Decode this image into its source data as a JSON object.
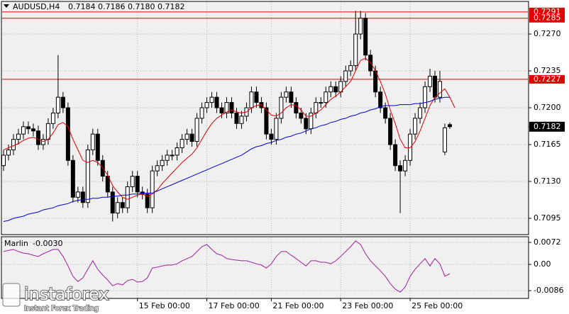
{
  "chart_data": {
    "type": "candlestick",
    "symbol": "AUDUSD,H4",
    "header_values": [
      "0.7184",
      "0.7186",
      "0.7180",
      "0.7182"
    ],
    "categories": [
      null,
      null,
      null,
      null,
      null,
      null,
      null,
      null,
      null,
      null,
      null,
      null,
      null,
      null,
      null,
      null,
      null,
      null,
      null,
      null,
      null,
      null,
      null,
      null,
      null,
      null,
      null,
      "15 Feb 00:00",
      null,
      null,
      null,
      null,
      null,
      null,
      null,
      null,
      null,
      null,
      null,
      null,
      null,
      "17 Feb 00:00",
      null,
      null,
      null,
      null,
      null,
      null,
      null,
      null,
      null,
      null,
      null,
      null,
      "21 Feb 00:00",
      null,
      null,
      null,
      null,
      null,
      null,
      null,
      null,
      null,
      null,
      null,
      null,
      null,
      "23 Feb 00:00",
      null,
      null,
      null,
      null,
      null,
      null,
      null,
      null,
      null,
      null,
      null,
      null,
      null,
      "25 Feb 00:00",
      null,
      null,
      null,
      null,
      null,
      null,
      null,
      null
    ],
    "open": [
      0.7145,
      0.7155,
      0.716,
      0.717,
      0.7175,
      0.7182,
      0.718,
      0.7178,
      0.7165,
      0.717,
      0.7185,
      0.7195,
      0.721,
      0.72,
      0.715,
      0.7115,
      0.712,
      0.711,
      0.716,
      0.7175,
      0.715,
      0.7135,
      0.712,
      0.71,
      0.711,
      0.7105,
      0.7125,
      0.7135,
      0.712,
      0.7118,
      0.7105,
      0.714,
      0.7145,
      0.715,
      0.7155,
      0.7155,
      0.7162,
      0.717,
      0.7175,
      0.7168,
      0.719,
      0.72,
      0.7205,
      0.721,
      0.72,
      0.7195,
      0.7205,
      0.7195,
      0.7185,
      0.7192,
      0.72,
      0.7215,
      0.7205,
      0.72,
      0.7175,
      0.717,
      0.719,
      0.721,
      0.7215,
      0.7205,
      0.7195,
      0.719,
      0.718,
      0.7195,
      0.7205,
      0.7205,
      0.7215,
      0.722,
      0.7215,
      0.7225,
      0.7235,
      0.724,
      0.727,
      0.7285,
      0.725,
      0.7235,
      0.7215,
      0.72,
      0.719,
      0.7165,
      0.7145,
      0.714,
      0.715,
      0.7175,
      0.719,
      0.72,
      0.722,
      0.723,
      0.721,
      0.7158,
      0.7184
    ],
    "high": [
      0.716,
      0.7165,
      0.7175,
      0.718,
      0.7187,
      0.7187,
      0.7185,
      0.7183,
      0.7175,
      0.719,
      0.72,
      0.725,
      0.7215,
      0.7205,
      0.7155,
      0.7125,
      0.7125,
      0.7165,
      0.718,
      0.718,
      0.7155,
      0.714,
      0.7125,
      0.7115,
      0.7115,
      0.713,
      0.714,
      0.714,
      0.7125,
      0.7123,
      0.7145,
      0.715,
      0.7155,
      0.716,
      0.716,
      0.7167,
      0.7175,
      0.718,
      0.718,
      0.7195,
      0.7205,
      0.721,
      0.7215,
      0.7215,
      0.7205,
      0.721,
      0.721,
      0.72,
      0.7197,
      0.7205,
      0.722,
      0.722,
      0.721,
      0.7205,
      0.718,
      0.7195,
      0.7215,
      0.722,
      0.722,
      0.721,
      0.72,
      0.7195,
      0.72,
      0.721,
      0.721,
      0.722,
      0.7225,
      0.7225,
      0.723,
      0.724,
      0.7245,
      0.7292,
      0.7292,
      0.729,
      0.7255,
      0.724,
      0.722,
      0.7205,
      0.7195,
      0.717,
      0.715,
      0.7155,
      0.718,
      0.7195,
      0.7205,
      0.7225,
      0.7237,
      0.7235,
      0.7235,
      0.7185,
      0.7186
    ],
    "low": [
      0.714,
      0.715,
      0.7155,
      0.7165,
      0.717,
      0.7175,
      0.7173,
      0.716,
      0.716,
      0.7165,
      0.718,
      0.719,
      0.7195,
      0.7145,
      0.711,
      0.711,
      0.7105,
      0.7105,
      0.7155,
      0.7145,
      0.713,
      0.7115,
      0.7092,
      0.7095,
      0.71,
      0.71,
      0.712,
      0.7115,
      0.7113,
      0.71,
      0.71,
      0.7135,
      0.714,
      0.7145,
      0.715,
      0.715,
      0.7157,
      0.7165,
      0.7163,
      0.7163,
      0.7185,
      0.7195,
      0.72,
      0.7195,
      0.719,
      0.719,
      0.719,
      0.718,
      0.718,
      0.7187,
      0.7195,
      0.72,
      0.7195,
      0.717,
      0.7165,
      0.7165,
      0.7185,
      0.7205,
      0.72,
      0.719,
      0.7185,
      0.7175,
      0.7175,
      0.719,
      0.72,
      0.72,
      0.721,
      0.721,
      0.721,
      0.722,
      0.723,
      0.7235,
      0.7265,
      0.7245,
      0.723,
      0.721,
      0.7195,
      0.7185,
      0.716,
      0.714,
      0.71,
      0.7135,
      0.7145,
      0.717,
      0.7185,
      0.7195,
      0.7215,
      0.7205,
      0.7205,
      0.7155,
      0.718
    ],
    "close": [
      0.7155,
      0.716,
      0.717,
      0.7175,
      0.7182,
      0.718,
      0.7178,
      0.7165,
      0.717,
      0.7185,
      0.7195,
      0.721,
      0.72,
      0.715,
      0.7115,
      0.712,
      0.711,
      0.716,
      0.7175,
      0.715,
      0.7135,
      0.712,
      0.71,
      0.711,
      0.7105,
      0.7125,
      0.7135,
      0.712,
      0.7118,
      0.7105,
      0.714,
      0.7145,
      0.715,
      0.7155,
      0.7155,
      0.7162,
      0.717,
      0.7175,
      0.7168,
      0.719,
      0.72,
      0.7205,
      0.721,
      0.72,
      0.7195,
      0.7205,
      0.7195,
      0.7185,
      0.7192,
      0.72,
      0.7215,
      0.7205,
      0.72,
      0.7175,
      0.717,
      0.719,
      0.721,
      0.7215,
      0.7205,
      0.7195,
      0.719,
      0.718,
      0.7195,
      0.7205,
      0.7205,
      0.7215,
      0.722,
      0.7215,
      0.7225,
      0.7235,
      0.724,
      0.727,
      0.7285,
      0.725,
      0.7235,
      0.7215,
      0.72,
      0.719,
      0.7165,
      0.7145,
      0.714,
      0.715,
      0.7175,
      0.719,
      0.72,
      0.722,
      0.723,
      0.721,
      0.7225,
      0.7181,
      0.7182
    ],
    "ylim": [
      0.70802,
      0.72929
    ],
    "yticks": [
      {
        "value": 0.727,
        "label": "0.7270"
      },
      0.7235,
      {
        "value": 0.72,
        "label": "0.7200"
      },
      0.7165,
      {
        "value": 0.713,
        "label": "0.7130"
      },
      0.7095
    ],
    "grid": true,
    "overlays": [
      {
        "color": "#e00000",
        "values": [
          0.716,
          0.7162,
          0.7164,
          0.7166,
          0.7169,
          0.7171,
          0.7172,
          0.717,
          0.7168,
          0.717,
          0.7176,
          0.7184,
          0.7186,
          0.7182,
          0.717,
          0.716,
          0.715,
          0.7148,
          0.715,
          0.7148,
          0.7143,
          0.7136,
          0.7126,
          0.712,
          0.7115,
          0.7113,
          0.7115,
          0.7117,
          0.7118,
          0.7116,
          0.7118,
          0.7122,
          0.7128,
          0.7133,
          0.7138,
          0.7143,
          0.7148,
          0.7152,
          0.7156,
          0.7162,
          0.717,
          0.7178,
          0.7185,
          0.719,
          0.7193,
          0.7196,
          0.7198,
          0.7196,
          0.7195,
          0.7196,
          0.72,
          0.7202,
          0.7203,
          0.7198,
          0.7193,
          0.7192,
          0.7195,
          0.72,
          0.7203,
          0.7202,
          0.7198,
          0.7192,
          0.7192,
          0.7195,
          0.7198,
          0.7203,
          0.7208,
          0.7211,
          0.7215,
          0.722,
          0.7225,
          0.7235,
          0.7245,
          0.7247,
          0.7243,
          0.7235,
          0.7225,
          0.7213,
          0.7198,
          0.7185,
          0.717,
          0.7162,
          0.7162,
          0.7168,
          0.7178,
          0.719,
          0.7202,
          0.721,
          0.7214,
          0.7218,
          0.721,
          0.72
        ]
      },
      {
        "color": "#0000cc",
        "values": [
          0.7092,
          0.7093,
          0.7095,
          0.7096,
          0.7097,
          0.7099,
          0.71,
          0.7101,
          0.7103,
          0.7104,
          0.7105,
          0.7107,
          0.7108,
          0.7109,
          0.7111,
          0.7112,
          0.7113,
          0.7113,
          0.7114,
          0.7114,
          0.7115,
          0.7115,
          0.7116,
          0.7116,
          0.7117,
          0.7117,
          0.7118,
          0.7118,
          0.7119,
          0.7119,
          0.7119,
          0.7121,
          0.7123,
          0.7125,
          0.7127,
          0.7129,
          0.7131,
          0.7133,
          0.7135,
          0.7137,
          0.7139,
          0.7141,
          0.7143,
          0.7145,
          0.7147,
          0.7149,
          0.7151,
          0.7153,
          0.7155,
          0.7158,
          0.7161,
          0.7163,
          0.7164,
          0.7166,
          0.7167,
          0.7169,
          0.717,
          0.7172,
          0.7173,
          0.7175,
          0.7176,
          0.7178,
          0.718,
          0.7181,
          0.7183,
          0.7184,
          0.7186,
          0.7187,
          0.7189,
          0.719,
          0.7192,
          0.7193,
          0.7195,
          0.7196,
          0.7198,
          0.7199,
          0.7201,
          0.7202,
          0.7202,
          0.7202,
          0.7203,
          0.7203,
          0.7203,
          0.7204,
          0.7204,
          0.7205,
          0.7206,
          0.7208,
          0.7209,
          0.721,
          0.721
        ]
      }
    ],
    "levels": {
      "color": "#e00000",
      "values": [
        0.7291,
        0.7285,
        0.7227
      ]
    },
    "indicator": {
      "name": "Marlin",
      "value_label": "-0.0030",
      "color": "#a020a0",
      "ylim": [
        -0.0109,
        0.00906
      ],
      "yticks": [
        0.0072,
        {
          "value": 0,
          "label": "0.00"
        },
        -0.0086
      ],
      "values": [
        0.0042,
        0.0046,
        0.0049,
        0.0042,
        0.0037,
        0.0035,
        0.003,
        0.0026,
        0.0035,
        0.0042,
        0.0049,
        0.0049,
        0.0026,
        -0.0005,
        -0.0039,
        -0.0056,
        -0.0044,
        -0.0016,
        0.0012,
        -0.0016,
        -0.0035,
        -0.0051,
        -0.007,
        -0.0063,
        -0.0067,
        -0.0053,
        -0.0049,
        -0.0058,
        -0.0056,
        -0.0044,
        -0.0012,
        -0.0009,
        -0.0005,
        -0.0002,
        -0.0002,
        0.0002,
        0.0012,
        0.0019,
        0.0026,
        0.0042,
        0.0058,
        0.0065,
        0.0049,
        0.0035,
        0.003,
        0.0019,
        0.0016,
        0.0014,
        0.0012,
        0.0012,
        0.0007,
        0.0002,
        -0.0002,
        -0.0012,
        0.0002,
        0.0026,
        0.0042,
        0.0042,
        0.003,
        0.0019,
        0.0007,
        -0.0005,
        0.0012,
        0.0012,
        0.0007,
        0.0007,
        0.0002,
        0.0012,
        0.0026,
        0.0042,
        0.0058,
        0.0077,
        0.0065,
        0.0035,
        0.0012,
        -0.0005,
        -0.0021,
        -0.0039,
        -0.0063,
        -0.0081,
        -0.0091,
        -0.0074,
        -0.0039,
        -0.0016,
        0.0002,
        0.0019,
        -0.0005,
        0.0019,
        0.0002,
        -0.0039,
        -0.003
      ]
    },
    "watermark": {
      "brand": "instaforex",
      "tagline": "Instant Forex Trading"
    }
  }
}
